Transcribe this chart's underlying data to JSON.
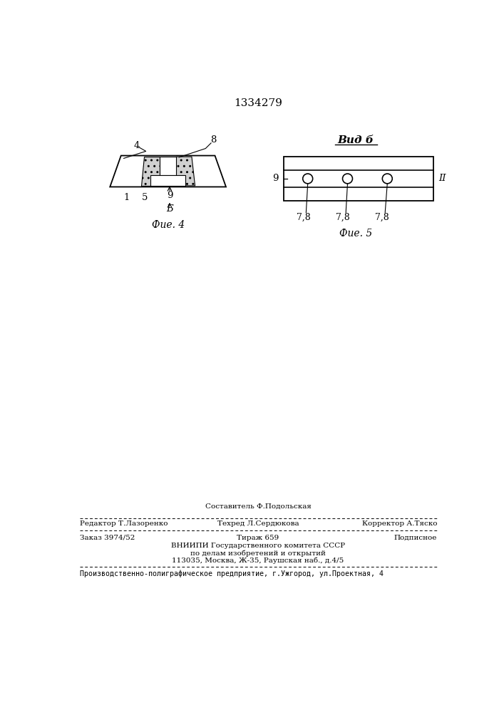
{
  "title": "1334279",
  "fig4_label": "Фие. 4",
  "fig5_label": "Фие. 5",
  "vid_b_label": "Вид б",
  "bg_color": "#ffffff",
  "line_color": "#000000",
  "footer_line1_center_top": "Составитель Ф.Подольская",
  "footer_line1_left": "Редактор Т.Лазоренко",
  "footer_line1_center": "Техред Л.Сердюкова",
  "footer_line1_right": "Корректор А.Тяско",
  "footer_line2_left": "Заказ 3974/52",
  "footer_line2_center": "Тираж 659",
  "footer_line2_right": "Подписное",
  "footer_line3": "ВНИИПИ Государственного комитета СССР",
  "footer_line4": "по делам изобретений и открытий",
  "footer_line5": "113035, Москва, Ж-35, Раушская наб., д.4/5",
  "footer_last": "Производственно-полиграфическое предприятие, г.Ужгород, ул.Проектная, 4"
}
